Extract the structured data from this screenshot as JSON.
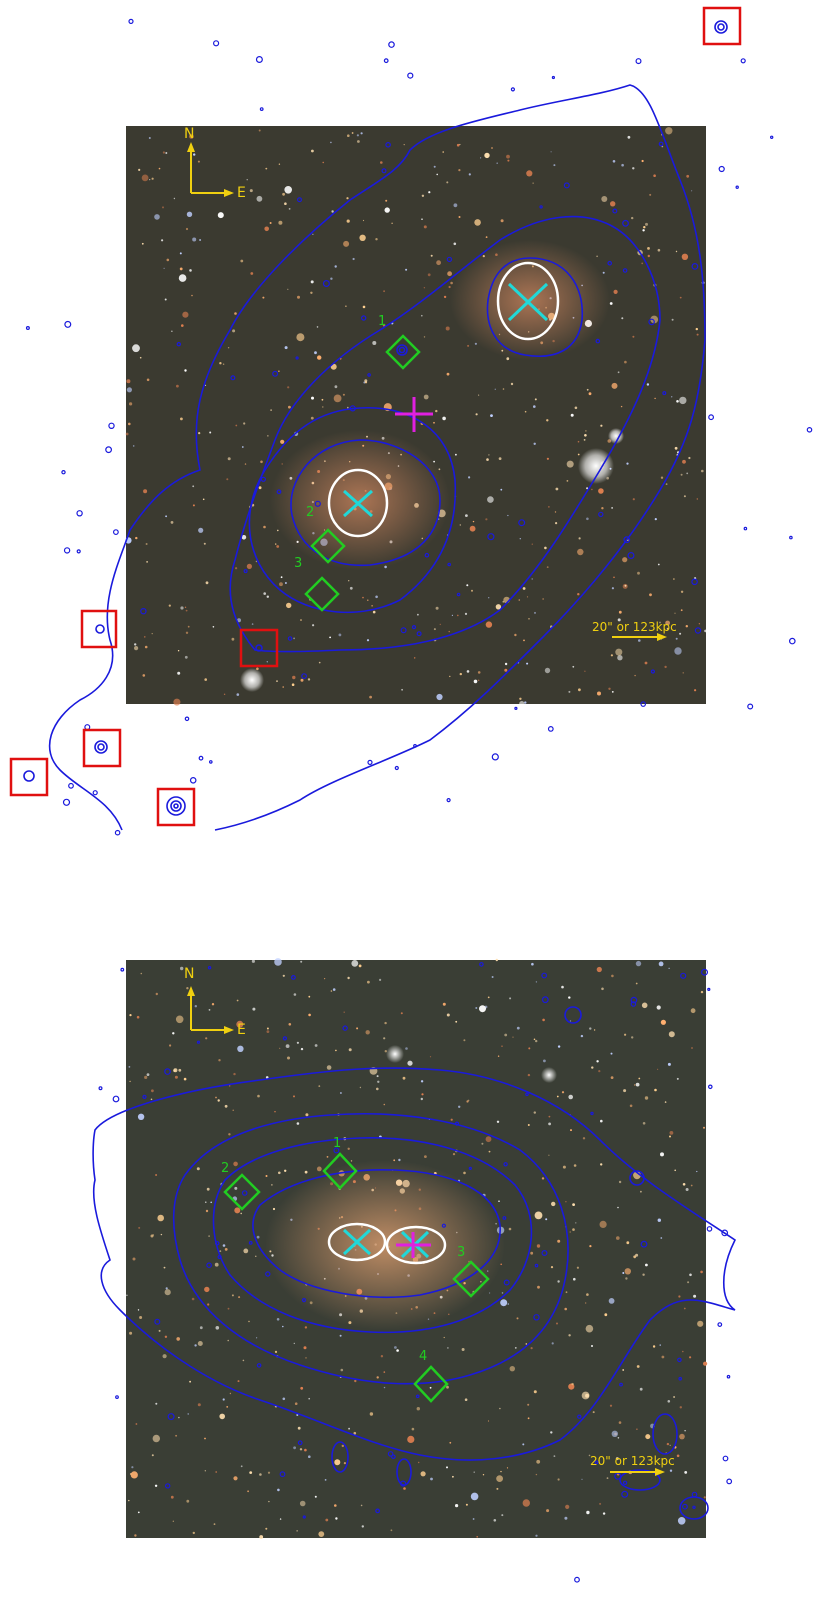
{
  "panels": [
    {
      "compass": {
        "north": "N",
        "east": "E"
      },
      "scale_bar_label": "20\" or 123kpc",
      "region_labels": [
        "1",
        "2",
        "3"
      ]
    },
    {
      "compass": {
        "north": "N",
        "east": "E"
      },
      "scale_bar_label": "20\" or 123kpc",
      "region_labels": [
        "1",
        "2",
        "3",
        "4"
      ]
    }
  ],
  "colors": {
    "contour": "#1a1adc",
    "box": "#e01010",
    "diamond": "#22cc22",
    "cross": "#20d8d8",
    "peak_marker": "#e020e0",
    "annotation": "#f0d010",
    "ellipse": "#ffffff",
    "sky": "#3a3a32"
  }
}
